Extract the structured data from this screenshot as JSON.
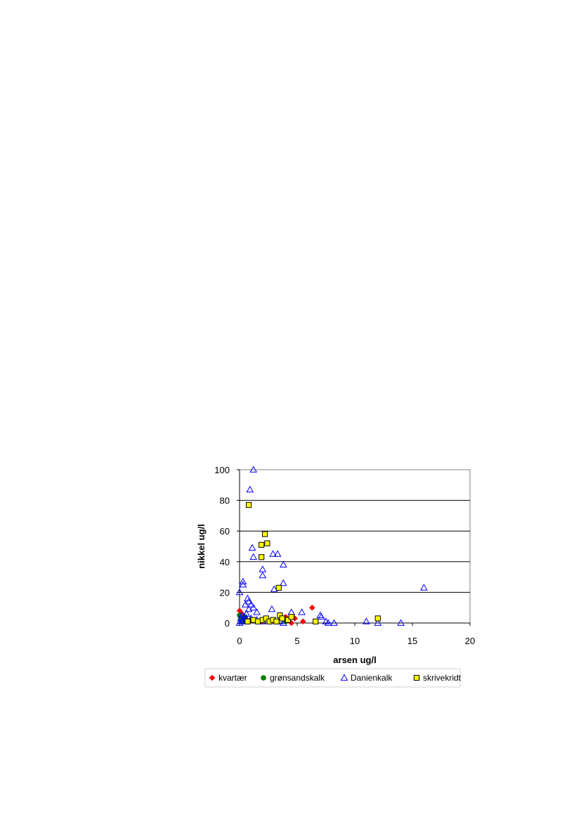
{
  "chart_data": {
    "type": "scatter",
    "title": "",
    "xlabel": "arsen ug/l",
    "ylabel": "nikkel ug/l",
    "xlim": [
      0,
      20
    ],
    "ylim": [
      0,
      100
    ],
    "xticks": [
      "0",
      "5",
      "10",
      "15",
      "20"
    ],
    "yticks": [
      "0",
      "20",
      "40",
      "60",
      "80",
      "100"
    ],
    "grid": "horizontal",
    "legend_position": "bottom",
    "series": [
      {
        "name": "kvartær",
        "marker": "diamond",
        "color": "#ff0000",
        "points": [
          [
            0,
            8
          ],
          [
            0.2,
            6
          ],
          [
            0.5,
            3
          ],
          [
            1,
            2
          ],
          [
            2,
            1
          ],
          [
            3,
            1
          ],
          [
            4,
            4
          ],
          [
            4.5,
            0
          ],
          [
            4.8,
            3
          ],
          [
            5.5,
            1
          ],
          [
            6.3,
            10
          ]
        ]
      },
      {
        "name": "grønsandskalk",
        "marker": "circle",
        "color": "#008000",
        "points": [
          [
            0,
            5
          ],
          [
            0.1,
            3
          ],
          [
            0.2,
            2
          ],
          [
            0.3,
            1
          ],
          [
            0.5,
            4
          ],
          [
            1,
            2
          ],
          [
            1.5,
            1
          ],
          [
            4,
            1
          ]
        ]
      },
      {
        "name": "Danienkalk",
        "marker": "triangle",
        "color": "#0000ff",
        "points": [
          [
            1.2,
            100
          ],
          [
            0.9,
            87
          ],
          [
            1.1,
            49
          ],
          [
            1.2,
            43
          ],
          [
            2.9,
            45
          ],
          [
            3.3,
            45
          ],
          [
            3.8,
            38
          ],
          [
            2,
            35
          ],
          [
            2,
            31
          ],
          [
            0.3,
            27
          ],
          [
            0.3,
            25
          ],
          [
            0,
            20
          ],
          [
            3.8,
            26
          ],
          [
            3,
            22
          ],
          [
            0.7,
            16
          ],
          [
            0.8,
            14
          ],
          [
            0.5,
            12
          ],
          [
            1,
            12
          ],
          [
            1.2,
            10
          ],
          [
            0.8,
            9
          ],
          [
            2.8,
            9
          ],
          [
            1.5,
            7
          ],
          [
            4.5,
            7
          ],
          [
            5.4,
            7
          ],
          [
            7,
            5
          ],
          [
            7.1,
            4
          ],
          [
            0.2,
            5
          ],
          [
            0.4,
            4
          ],
          [
            0.6,
            6
          ],
          [
            0.1,
            3
          ],
          [
            0.3,
            2
          ],
          [
            0.6,
            2
          ],
          [
            1,
            3
          ],
          [
            0.2,
            1
          ],
          [
            0.5,
            1
          ],
          [
            1.5,
            2
          ],
          [
            2,
            1
          ],
          [
            0,
            0
          ],
          [
            3.5,
            1
          ],
          [
            3.8,
            0
          ],
          [
            7.5,
            1
          ],
          [
            7.7,
            0
          ],
          [
            8.2,
            0
          ],
          [
            11,
            1
          ],
          [
            12,
            0
          ],
          [
            14,
            0
          ],
          [
            16,
            23
          ]
        ]
      },
      {
        "name": "skrivekridt",
        "marker": "square",
        "color": "#ffff00",
        "points": [
          [
            0.8,
            77
          ],
          [
            2.2,
            58
          ],
          [
            2.4,
            52
          ],
          [
            1.9,
            51
          ],
          [
            1.9,
            43
          ],
          [
            3.4,
            23
          ],
          [
            0.7,
            1
          ],
          [
            1.2,
            2
          ],
          [
            1.6,
            1
          ],
          [
            2,
            2
          ],
          [
            2.3,
            3
          ],
          [
            2.6,
            1
          ],
          [
            2.9,
            2
          ],
          [
            3.2,
            1
          ],
          [
            3.5,
            5
          ],
          [
            3.7,
            3
          ],
          [
            4.2,
            2
          ],
          [
            4.5,
            4
          ],
          [
            6.6,
            1
          ],
          [
            12,
            3
          ]
        ]
      }
    ]
  }
}
